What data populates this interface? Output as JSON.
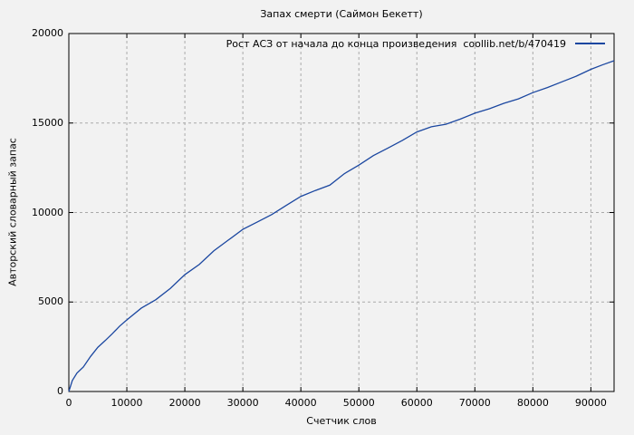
{
  "window": {
    "background": "#f2f2f2"
  },
  "colors": {
    "background": "#f2f2f2",
    "plot_border": "#000000",
    "grid": "#aaaaaa",
    "text": "#000000",
    "series_line": "#1b47a0"
  },
  "chart_data": {
    "type": "line",
    "title": "Запах смерти (Саймон Бекетт)",
    "xlabel": "Счетчик слов",
    "ylabel": "Авторский словарный запас",
    "xlim": [
      0,
      94000
    ],
    "ylim": [
      0,
      20000
    ],
    "x_ticks": [
      0,
      10000,
      20000,
      30000,
      40000,
      50000,
      60000,
      70000,
      80000,
      90000
    ],
    "y_ticks": [
      0,
      5000,
      10000,
      15000,
      20000
    ],
    "grid": "dashed",
    "legend": {
      "position": "top-right-inside",
      "label": "Рост АСЗ от начала до конца произведения  coollib.net/b/470419",
      "color": "#1b47a0"
    },
    "series": [
      {
        "name": "Рост АСЗ",
        "color": "#1b47a0",
        "points": [
          [
            0,
            0
          ],
          [
            600,
            610
          ],
          [
            1400,
            1030
          ],
          [
            2500,
            1370
          ],
          [
            3750,
            1960
          ],
          [
            5000,
            2470
          ],
          [
            6250,
            2840
          ],
          [
            7500,
            3230
          ],
          [
            8750,
            3650
          ],
          [
            10000,
            4000
          ],
          [
            12500,
            4660
          ],
          [
            15000,
            5130
          ],
          [
            17500,
            5760
          ],
          [
            20000,
            6530
          ],
          [
            22500,
            7100
          ],
          [
            25000,
            7860
          ],
          [
            27500,
            8460
          ],
          [
            30000,
            9060
          ],
          [
            32500,
            9470
          ],
          [
            35000,
            9890
          ],
          [
            37500,
            10400
          ],
          [
            40000,
            10900
          ],
          [
            42500,
            11230
          ],
          [
            45000,
            11530
          ],
          [
            47500,
            12170
          ],
          [
            50000,
            12650
          ],
          [
            52500,
            13180
          ],
          [
            55000,
            13600
          ],
          [
            57500,
            14030
          ],
          [
            60000,
            14500
          ],
          [
            62500,
            14790
          ],
          [
            65000,
            14930
          ],
          [
            67500,
            15220
          ],
          [
            70000,
            15550
          ],
          [
            72500,
            15800
          ],
          [
            75000,
            16100
          ],
          [
            77500,
            16350
          ],
          [
            80000,
            16700
          ],
          [
            82500,
            16980
          ],
          [
            85000,
            17300
          ],
          [
            87500,
            17620
          ],
          [
            90000,
            18000
          ],
          [
            92000,
            18250
          ],
          [
            94000,
            18480
          ]
        ]
      }
    ]
  }
}
